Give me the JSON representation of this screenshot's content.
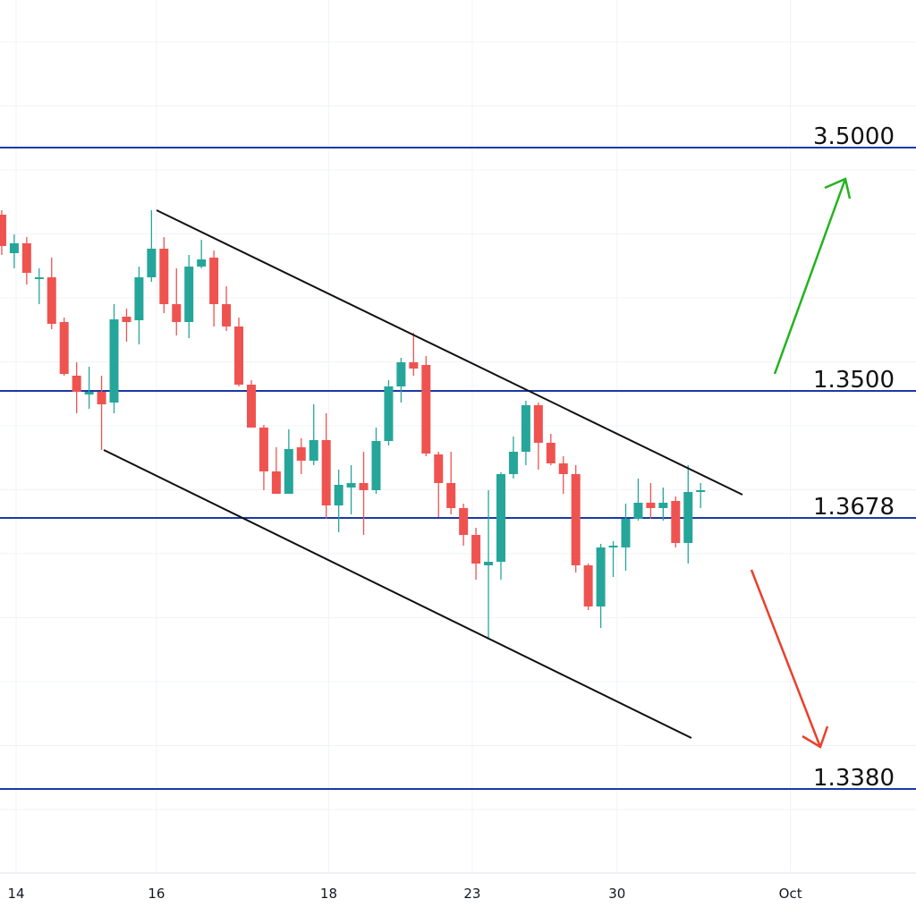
{
  "chart_data": {
    "type": "candlestick",
    "x": [
      0,
      1,
      2,
      3,
      4,
      5,
      6,
      7,
      8,
      9,
      10,
      11,
      12,
      13,
      14,
      15,
      16,
      17,
      18,
      19,
      20,
      21,
      22,
      23,
      24,
      25,
      26,
      27,
      28,
      29,
      30,
      31,
      32,
      33,
      34,
      35,
      36,
      37,
      38,
      39,
      40,
      41,
      42,
      43,
      44,
      45,
      46,
      47,
      48,
      49,
      50,
      51,
      52,
      53,
      54,
      55,
      56
    ],
    "open": [
      1.3604,
      1.35868,
      1.35912,
      1.35752,
      1.3576,
      1.3556,
      1.3532,
      1.35236,
      1.35248,
      1.352,
      1.35584,
      1.35568,
      1.3576,
      1.35888,
      1.3564,
      1.3556,
      1.35808,
      1.35848,
      1.3564,
      1.3554,
      1.3528,
      1.35088,
      1.34892,
      1.34792,
      1.35,
      1.3494,
      1.35032,
      1.3474,
      1.3482,
      1.3484,
      1.34808,
      1.35028,
      1.35272,
      1.3538,
      1.35368,
      1.34968,
      1.3484,
      1.34728,
      1.34608,
      1.34472,
      1.34488,
      1.3488,
      1.3498,
      1.35188,
      1.3502,
      1.34928,
      1.3488,
      1.34472,
      1.34288,
      1.34552,
      1.34552,
      1.3468,
      1.34752,
      1.34728,
      1.3476,
      1.34572,
      1.348
    ],
    "high": [
      1.3606,
      1.35952,
      1.3594,
      1.358,
      1.35848,
      1.3558,
      1.3538,
      1.3536,
      1.3532,
      1.3564,
      1.3562,
      1.35808,
      1.3606,
      1.3594,
      1.358,
      1.3586,
      1.35928,
      1.3588,
      1.3572,
      1.3558,
      1.353,
      1.351,
      1.35,
      1.3508,
      1.3504,
      1.35192,
      1.35152,
      1.349,
      1.3492,
      1.3498,
      1.35088,
      1.353,
      1.354,
      1.35512,
      1.35408,
      1.3498,
      1.3498,
      1.34748,
      1.3464,
      1.34808,
      1.34888,
      1.35048,
      1.35208,
      1.352,
      1.3506,
      1.3496,
      1.3492,
      1.3448,
      1.34568,
      1.3458,
      1.34748,
      1.3486,
      1.3484,
      1.3482,
      1.3478,
      1.3492,
      1.3484
    ],
    "low": [
      1.3586,
      1.358,
      1.35728,
      1.3564,
      1.35528,
      1.3532,
      1.35152,
      1.35172,
      1.34988,
      1.35152,
      1.35472,
      1.3546,
      1.3574,
      1.356,
      1.355,
      1.35488,
      1.358,
      1.3554,
      1.3552,
      1.35272,
      1.35088,
      1.34808,
      1.34792,
      1.34792,
      1.3488,
      1.3492,
      1.3468,
      1.3462,
      1.347,
      1.34608,
      1.34792,
      1.35008,
      1.352,
      1.3532,
      1.3496,
      1.34688,
      1.347,
      1.3456,
      1.34408,
      1.3414,
      1.34408,
      1.3486,
      1.3492,
      1.349,
      1.3492,
      1.34792,
      1.3444,
      1.34272,
      1.34192,
      1.3442,
      1.34448,
      1.34672,
      1.3468,
      1.34672,
      1.34552,
      1.3448,
      1.34728
    ],
    "close": [
      1.359,
      1.35912,
      1.3578,
      1.3576,
      1.35552,
      1.35328,
      1.35248,
      1.35248,
      1.35192,
      1.35572,
      1.3556,
      1.3576,
      1.35888,
      1.3564,
      1.3556,
      1.35808,
      1.3584,
      1.3564,
      1.3554,
      1.3528,
      1.35088,
      1.34892,
      1.34792,
      1.34992,
      1.3494,
      1.35032,
      1.3474,
      1.34832,
      1.3484,
      1.34808,
      1.35028,
      1.35272,
      1.3538,
      1.35352,
      1.34972,
      1.3484,
      1.34728,
      1.34608,
      1.3448,
      1.34488,
      1.3488,
      1.3498,
      1.35188,
      1.3502,
      1.34928,
      1.3488,
      1.34472,
      1.34288,
      1.34552,
      1.3456,
      1.3468,
      1.34752,
      1.34728,
      1.34752,
      1.34572,
      1.348,
      1.34808
    ],
    "up_color": "#26a69a",
    "down_color": "#ef5350",
    "xlim": [
      -0.14,
      73.26
    ],
    "ylim": [
      1.33,
      1.37
    ],
    "xticks": [
      {
        "value": 1.15,
        "label": "14"
      },
      {
        "value": 12.4,
        "label": "16"
      },
      {
        "value": 26.2,
        "label": "18"
      },
      {
        "value": 37.7,
        "label": "23"
      },
      {
        "value": 49.3,
        "label": "30"
      },
      {
        "value": 63.2,
        "label": "Oct"
      }
    ],
    "level_labels": [
      "3.5000",
      "1.3500",
      "1.3678",
      "1.3380"
    ],
    "level_color": "#1a3aa6",
    "grid": true
  }
}
